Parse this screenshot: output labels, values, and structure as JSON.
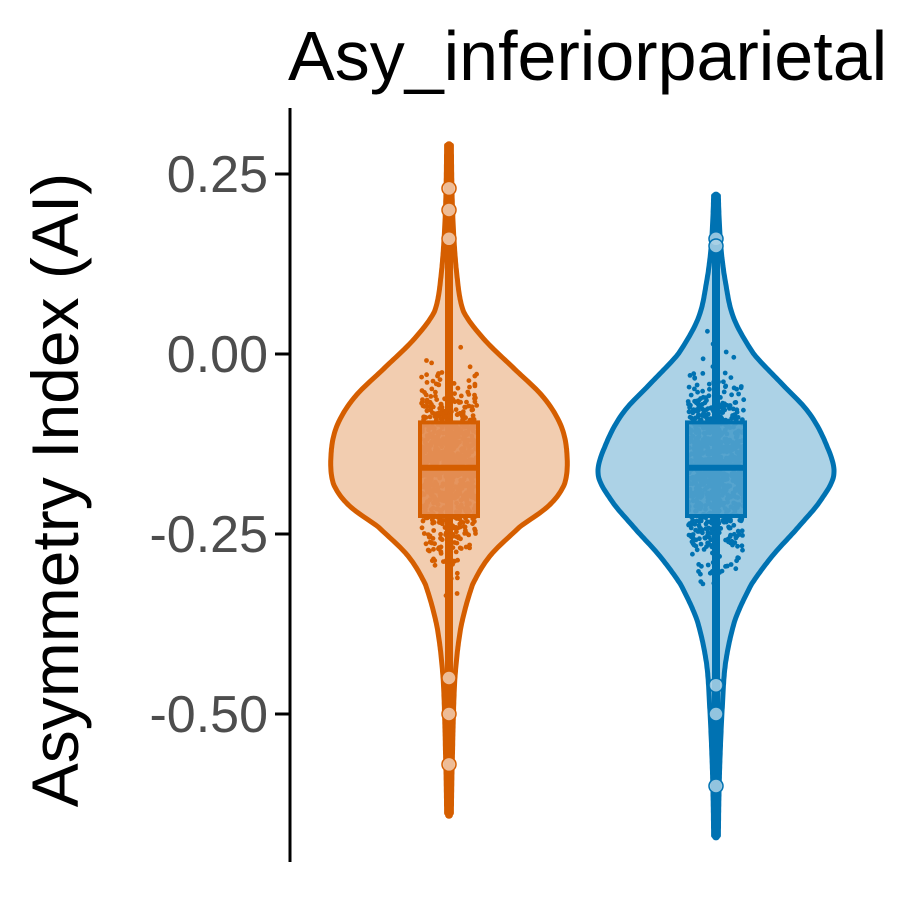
{
  "chart_data": {
    "type": "violin",
    "title": "Asy_inferiorparietal",
    "ylabel": "Asymmetry Index (AI)",
    "xlabel": "",
    "ylim": [
      -0.7,
      0.33
    ],
    "yticks": [
      0.25,
      0.0,
      -0.25,
      -0.5
    ],
    "ytick_labels": [
      "0.25",
      "0.00",
      "-0.25",
      "-0.50"
    ],
    "grid": false,
    "legend": "none",
    "groups": [
      {
        "color": "#d55e00",
        "fill": "#f2cdb0",
        "box_fill": "#e49058",
        "min": -0.64,
        "max": 0.29,
        "q1": -0.225,
        "median": -0.158,
        "q3": -0.095,
        "density": [
          [
            0.29,
            0.02
          ],
          [
            0.2,
            0.03
          ],
          [
            0.12,
            0.06
          ],
          [
            0.06,
            0.12
          ],
          [
            0.02,
            0.3
          ],
          [
            -0.02,
            0.55
          ],
          [
            -0.06,
            0.8
          ],
          [
            -0.1,
            0.95
          ],
          [
            -0.14,
            1.0
          ],
          [
            -0.18,
            0.98
          ],
          [
            -0.21,
            0.85
          ],
          [
            -0.24,
            0.6
          ],
          [
            -0.28,
            0.35
          ],
          [
            -0.32,
            0.2
          ],
          [
            -0.38,
            0.1
          ],
          [
            -0.45,
            0.05
          ],
          [
            -0.55,
            0.03
          ],
          [
            -0.64,
            0.02
          ]
        ],
        "outliers": [
          0.23,
          0.2,
          0.16,
          -0.45,
          -0.5,
          -0.57
        ]
      },
      {
        "color": "#0072b2",
        "fill": "#acd2e6",
        "box_fill": "#4e9fcc",
        "min": -0.67,
        "max": 0.22,
        "q1": -0.225,
        "median": -0.158,
        "q3": -0.095,
        "density": [
          [
            0.22,
            0.02
          ],
          [
            0.15,
            0.04
          ],
          [
            0.1,
            0.08
          ],
          [
            0.05,
            0.15
          ],
          [
            0.0,
            0.32
          ],
          [
            -0.04,
            0.55
          ],
          [
            -0.08,
            0.78
          ],
          [
            -0.12,
            0.92
          ],
          [
            -0.165,
            1.0
          ],
          [
            -0.2,
            0.9
          ],
          [
            -0.24,
            0.7
          ],
          [
            -0.28,
            0.48
          ],
          [
            -0.32,
            0.3
          ],
          [
            -0.37,
            0.16
          ],
          [
            -0.43,
            0.08
          ],
          [
            -0.5,
            0.05
          ],
          [
            -0.58,
            0.03
          ],
          [
            -0.67,
            0.02
          ]
        ],
        "outliers": [
          0.16,
          0.15,
          -0.46,
          -0.5,
          -0.6
        ]
      }
    ]
  }
}
